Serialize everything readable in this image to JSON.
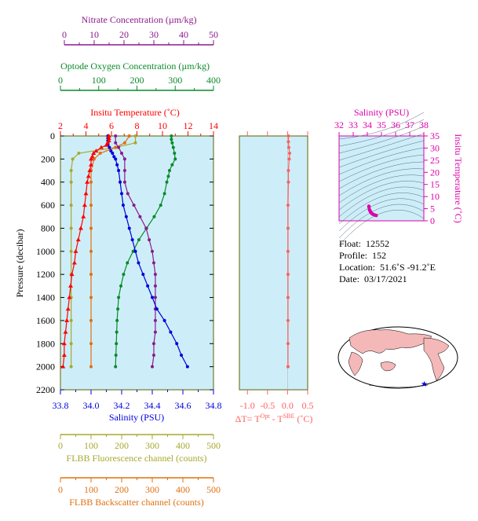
{
  "colors": {
    "nitrate": "#8b1a8b",
    "oxygen": "#0a8a2a",
    "temperature": "#ff0000",
    "salinity": "#0000dd",
    "fluorescence": "#a8a830",
    "backscatter": "#e07010",
    "dt": "#ff6060",
    "ts": "#dd00aa",
    "panel_bg": "#cdeef8",
    "map_land": "#f4b8b8"
  },
  "top_axes": {
    "nitrate": {
      "title": "Nitrate Concentration (µm/kg)",
      "ticks": [
        "0",
        "10",
        "20",
        "30",
        "40",
        "50"
      ]
    },
    "oxygen": {
      "title": "Optode Oxygen Concentration (µm/kg)",
      "ticks": [
        "0",
        "100",
        "200",
        "300",
        "400"
      ]
    },
    "temperature": {
      "title": "Insitu Temperature (˚C)",
      "ticks": [
        "2",
        "4",
        "6",
        "8",
        "10",
        "12",
        "14"
      ]
    }
  },
  "bottom_axes": {
    "salinity": {
      "title": "Salinity (PSU)",
      "ticks": [
        "33.8",
        "34.0",
        "34.2",
        "34.4",
        "34.6",
        "34.8"
      ]
    },
    "fluorescence": {
      "title": "FLBB Fluorescence channel (counts)",
      "ticks": [
        "0",
        "100",
        "200",
        "300",
        "400",
        "500"
      ]
    },
    "backscatter": {
      "title": "FLBB Backscatter channel (counts)",
      "ticks": [
        "0",
        "100",
        "200",
        "300",
        "400",
        "500"
      ]
    }
  },
  "pressure_axis": {
    "title": "Pressure (decibar)",
    "ticks": [
      "0",
      "200",
      "400",
      "600",
      "800",
      "1000",
      "1200",
      "1400",
      "1600",
      "1800",
      "2000",
      "2200"
    ]
  },
  "dt_axis": {
    "title_prefix": "ΔT= T",
    "sup1": "Opt",
    "mid": " - T",
    "sup2": "SBE",
    "suffix": " (˚C)",
    "ticks": [
      "-1.0",
      "-0.5",
      "0.0",
      "0.5"
    ]
  },
  "ts_axis": {
    "title": "Salinity (PSU)",
    "ticks_x": [
      "32",
      "33",
      "34",
      "35",
      "36",
      "37",
      "38"
    ],
    "ticks_y": [
      "35",
      "30",
      "25",
      "20",
      "15",
      "10",
      "5",
      "0"
    ],
    "ylabel": "Insitu Temperature (˚C)"
  },
  "info": {
    "float_label": "Float:",
    "float_value": "12552",
    "profile_label": "Profile:",
    "profile_value": "152",
    "location_label": "Location:",
    "location_value": "51.6˚S  -91.2˚E",
    "date_label": "Date:",
    "date_value": "03/17/2021"
  },
  "chart_data": {
    "type": "line",
    "pressure_range": [
      0,
      2200
    ],
    "series": [
      {
        "name": "Insitu Temperature (˚C)",
        "key": "temperature",
        "xlim": [
          2,
          14
        ],
        "points": [
          [
            5.8,
            0
          ],
          [
            5.8,
            20
          ],
          [
            5.8,
            40
          ],
          [
            5.7,
            60
          ],
          [
            5.6,
            80
          ],
          [
            5.2,
            100
          ],
          [
            4.8,
            130
          ],
          [
            4.6,
            150
          ],
          [
            4.5,
            180
          ],
          [
            4.4,
            200
          ],
          [
            4.4,
            250
          ],
          [
            4.3,
            300
          ],
          [
            4.2,
            350
          ],
          [
            4.1,
            400
          ],
          [
            4.0,
            500
          ],
          [
            3.9,
            600
          ],
          [
            3.8,
            700
          ],
          [
            3.6,
            800
          ],
          [
            3.4,
            900
          ],
          [
            3.2,
            1000
          ],
          [
            3.1,
            1100
          ],
          [
            2.9,
            1200
          ],
          [
            2.8,
            1300
          ],
          [
            2.7,
            1400
          ],
          [
            2.6,
            1500
          ],
          [
            2.5,
            1600
          ],
          [
            2.4,
            1700
          ],
          [
            2.3,
            1800
          ],
          [
            2.3,
            1900
          ],
          [
            2.2,
            2000
          ]
        ]
      },
      {
        "name": "Salinity (PSU)",
        "key": "salinity",
        "xlim": [
          33.8,
          34.8
        ],
        "points": [
          [
            34.11,
            0
          ],
          [
            34.11,
            20
          ],
          [
            34.11,
            40
          ],
          [
            34.11,
            60
          ],
          [
            34.11,
            80
          ],
          [
            34.12,
            100
          ],
          [
            34.13,
            130
          ],
          [
            34.14,
            150
          ],
          [
            34.15,
            180
          ],
          [
            34.16,
            200
          ],
          [
            34.17,
            250
          ],
          [
            34.18,
            300
          ],
          [
            34.19,
            400
          ],
          [
            34.2,
            500
          ],
          [
            34.21,
            600
          ],
          [
            34.23,
            700
          ],
          [
            34.25,
            800
          ],
          [
            34.27,
            900
          ],
          [
            34.29,
            1000
          ],
          [
            34.31,
            1100
          ],
          [
            34.34,
            1200
          ],
          [
            34.37,
            1300
          ],
          [
            34.4,
            1400
          ],
          [
            34.43,
            1500
          ],
          [
            34.48,
            1600
          ],
          [
            34.52,
            1700
          ],
          [
            34.56,
            1800
          ],
          [
            34.59,
            1900
          ],
          [
            34.63,
            2000
          ]
        ]
      },
      {
        "name": "Optode Oxygen Concentration (µm/kg)",
        "key": "oxygen",
        "xlim": [
          0,
          400
        ],
        "points": [
          [
            290,
            0
          ],
          [
            290,
            30
          ],
          [
            292,
            60
          ],
          [
            295,
            100
          ],
          [
            298,
            150
          ],
          [
            300,
            200
          ],
          [
            292,
            250
          ],
          [
            285,
            300
          ],
          [
            282,
            350
          ],
          [
            278,
            400
          ],
          [
            272,
            500
          ],
          [
            262,
            600
          ],
          [
            245,
            700
          ],
          [
            225,
            800
          ],
          [
            205,
            900
          ],
          [
            190,
            1000
          ],
          [
            175,
            1100
          ],
          [
            165,
            1200
          ],
          [
            158,
            1300
          ],
          [
            152,
            1400
          ],
          [
            150,
            1500
          ],
          [
            148,
            1600
          ],
          [
            147,
            1700
          ],
          [
            146,
            1800
          ],
          [
            145,
            1900
          ],
          [
            144,
            2000
          ]
        ]
      },
      {
        "name": "Nitrate Concentration (µm/kg)",
        "key": "nitrate",
        "xlim": [
          0,
          50
        ],
        "points": [
          [
            18,
            0
          ],
          [
            18,
            60
          ],
          [
            19,
            100
          ],
          [
            20,
            150
          ],
          [
            21,
            200
          ],
          [
            21,
            300
          ],
          [
            21,
            400
          ],
          [
            22,
            500
          ],
          [
            24,
            600
          ],
          [
            26,
            700
          ],
          [
            28,
            800
          ],
          [
            29,
            900
          ],
          [
            30,
            1000
          ],
          [
            30.5,
            1100
          ],
          [
            31,
            1200
          ],
          [
            31,
            1300
          ],
          [
            31,
            1400
          ],
          [
            31,
            1500
          ],
          [
            31,
            1600
          ],
          [
            31,
            1700
          ],
          [
            30.5,
            1800
          ],
          [
            30.5,
            1900
          ],
          [
            30,
            2000
          ]
        ]
      },
      {
        "name": "FLBB Fluorescence channel (counts)",
        "key": "fluorescence",
        "xlim": [
          0,
          500
        ],
        "points": [
          [
            245,
            0
          ],
          [
            245,
            60
          ],
          [
            180,
            100
          ],
          [
            60,
            150
          ],
          [
            40,
            200
          ],
          [
            35,
            300
          ],
          [
            35,
            400
          ],
          [
            35,
            600
          ],
          [
            35,
            800
          ],
          [
            35,
            1000
          ],
          [
            35,
            1200
          ],
          [
            35,
            1400
          ],
          [
            35,
            1600
          ],
          [
            35,
            1800
          ],
          [
            35,
            2000
          ]
        ]
      },
      {
        "name": "FLBB Backscatter channel (counts)",
        "key": "backscatter",
        "xlim": [
          0,
          500
        ],
        "points": [
          [
            225,
            0
          ],
          [
            210,
            60
          ],
          [
            180,
            100
          ],
          [
            130,
            150
          ],
          [
            110,
            200
          ],
          [
            100,
            300
          ],
          [
            100,
            400
          ],
          [
            100,
            600
          ],
          [
            100,
            800
          ],
          [
            100,
            1000
          ],
          [
            100,
            1200
          ],
          [
            100,
            1400
          ],
          [
            100,
            1600
          ],
          [
            100,
            1800
          ],
          [
            100,
            2000
          ]
        ]
      },
      {
        "name": "ΔT",
        "key": "dt",
        "xlim": [
          -1.2,
          0.5
        ],
        "points": [
          [
            0.02,
            0
          ],
          [
            0.02,
            50
          ],
          [
            0.03,
            100
          ],
          [
            0.05,
            150
          ],
          [
            0.04,
            200
          ],
          [
            0.02,
            300
          ],
          [
            0.02,
            400
          ],
          [
            0.01,
            600
          ],
          [
            0.01,
            800
          ],
          [
            0.01,
            1000
          ],
          [
            0.01,
            1200
          ],
          [
            0.01,
            1400
          ],
          [
            0.01,
            1600
          ],
          [
            0.01,
            1800
          ],
          [
            0.01,
            2000
          ]
        ]
      },
      {
        "name": "T-S",
        "key": "ts",
        "xlim": [
          32,
          38
        ],
        "ylim": [
          0,
          35
        ],
        "points": [
          [
            34.11,
            6.0
          ],
          [
            34.12,
            5.6
          ],
          [
            34.15,
            4.6
          ],
          [
            34.18,
            4.3
          ],
          [
            34.2,
            4.0
          ],
          [
            34.23,
            3.7
          ],
          [
            34.25,
            3.5
          ],
          [
            34.3,
            3.1
          ],
          [
            34.35,
            2.9
          ],
          [
            34.4,
            2.7
          ],
          [
            34.48,
            2.5
          ],
          [
            34.56,
            2.3
          ],
          [
            34.63,
            2.2
          ]
        ]
      }
    ]
  }
}
